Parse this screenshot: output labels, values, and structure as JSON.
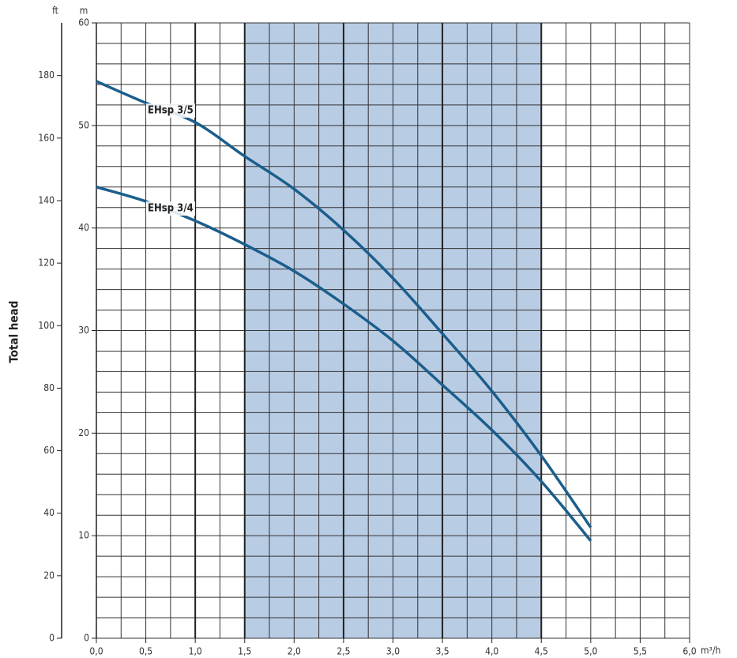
{
  "chart_data": {
    "type": "line",
    "y_label": "Total head",
    "y_unit": "m",
    "y2_unit": "ft",
    "x_unit": "m³/h",
    "x": [
      0,
      0.5,
      1.0,
      1.5,
      2.0,
      2.5,
      3.0,
      3.5,
      4.0,
      4.5,
      5.0
    ],
    "series": [
      {
        "name": "EHsp 3/5",
        "color": "#1b5e8c",
        "values": [
          54.3,
          52.2,
          50.3,
          47.0,
          43.8,
          39.8,
          35.1,
          29.7,
          24.1,
          17.8,
          10.8
        ]
      },
      {
        "name": "EHsp 3/4",
        "color": "#1b5e8c",
        "values": [
          44.0,
          42.6,
          40.7,
          38.4,
          35.8,
          32.6,
          29.0,
          24.7,
          20.3,
          15.3,
          9.5
        ]
      }
    ],
    "xlim": [
      0,
      6
    ],
    "xticks": [
      {
        "value": 0,
        "label": "0,0"
      },
      {
        "value": 0.5,
        "label": "0,5"
      },
      {
        "value": 1,
        "label": "1,0"
      },
      {
        "value": 1.5,
        "label": "1,5"
      },
      {
        "value": 2,
        "label": "2,0"
      },
      {
        "value": 2.5,
        "label": "2,5"
      },
      {
        "value": 3,
        "label": "3,0"
      },
      {
        "value": 3.5,
        "label": "3,5"
      },
      {
        "value": 4,
        "label": "4,0"
      },
      {
        "value": 4.5,
        "label": "4,5"
      },
      {
        "value": 5,
        "label": "5,0"
      },
      {
        "value": 5.5,
        "label": "5,5"
      },
      {
        "value": 6,
        "label": "6,0"
      }
    ],
    "ylim": [
      0,
      60
    ],
    "yticks": [
      0,
      10,
      20,
      30,
      40,
      50,
      60
    ],
    "y2lim": [
      0,
      196.85
    ],
    "y2ticks": [
      0,
      20,
      40,
      60,
      80,
      100,
      120,
      140,
      160,
      180
    ],
    "grid": true,
    "x_grid_step": 0.25,
    "y_grid_step": 2,
    "major_gridlines": [
      1,
      2.5,
      3.5
    ],
    "shaded_range": [
      1.5,
      4.5
    ],
    "shade_color": "#b8cce4"
  }
}
